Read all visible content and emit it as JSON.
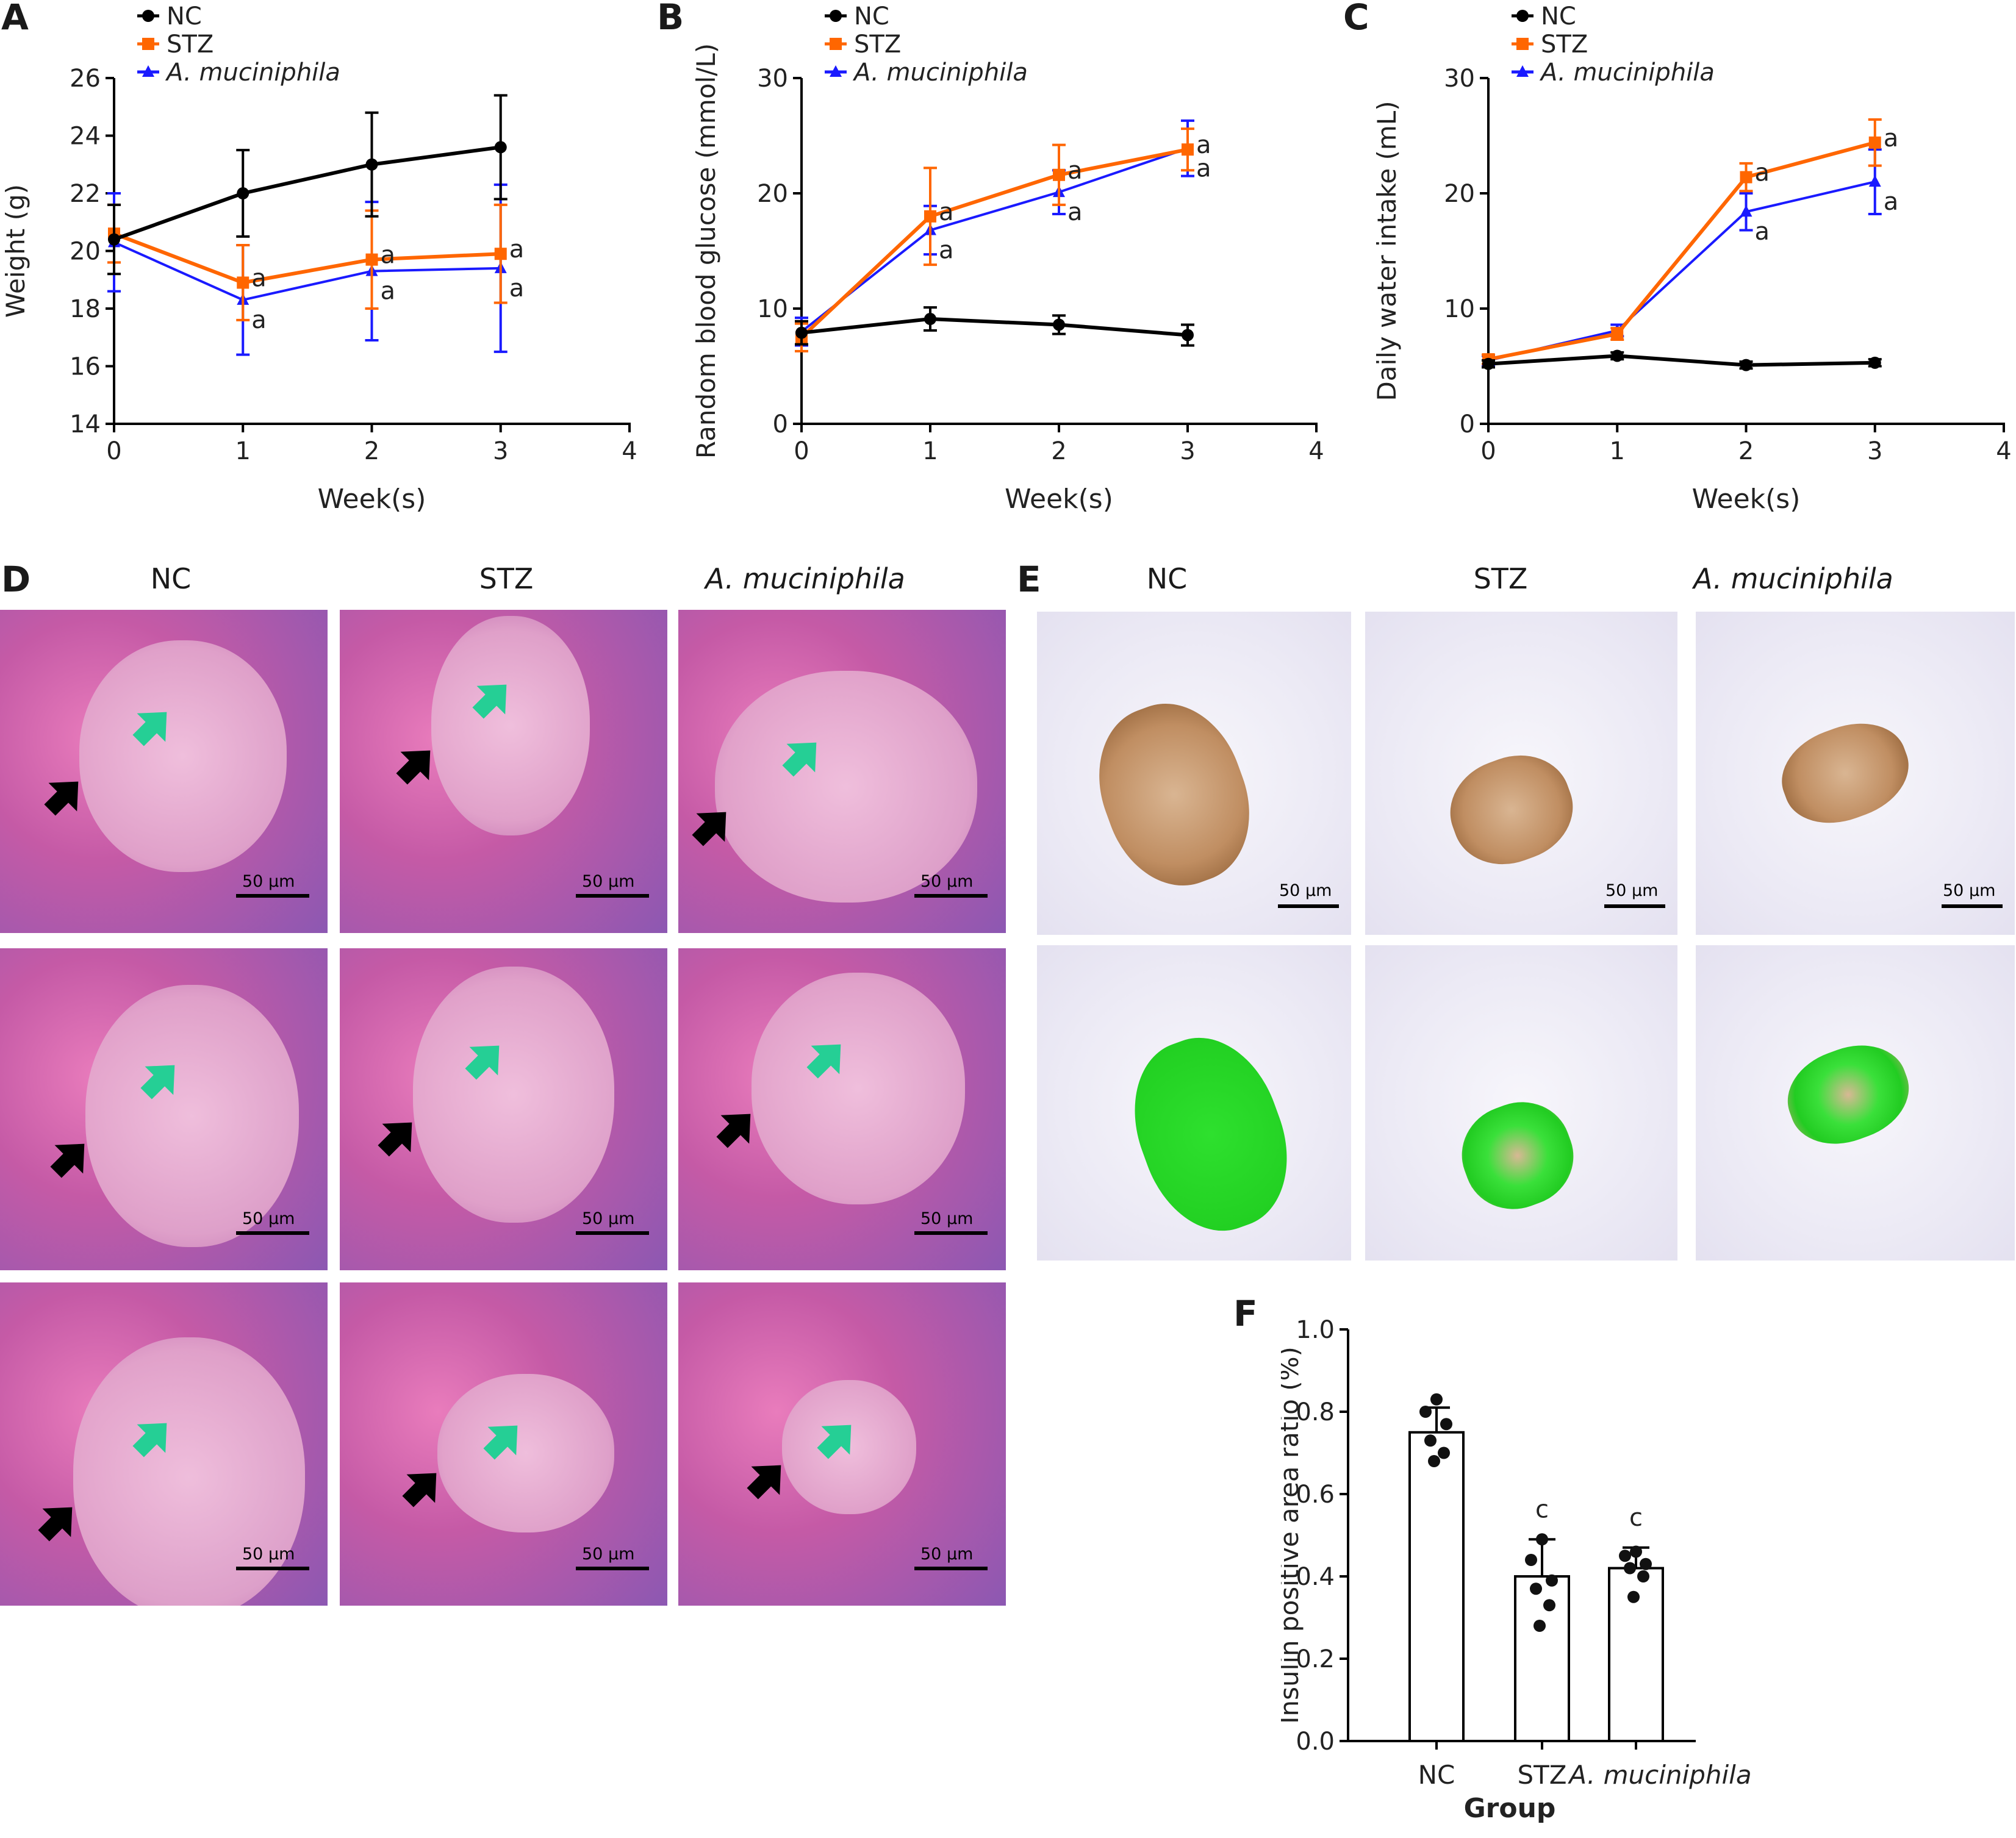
{
  "panels": {
    "A": "A",
    "B": "B",
    "C": "C",
    "D": "D",
    "E": "E",
    "F": "F"
  },
  "colors": {
    "NC": "#000000",
    "STZ": "#ff6600",
    "Akk": "#1a1aff",
    "he_pink": "#d44f9a",
    "he_purple": "#7a4fa6",
    "ihc_brown": "#9a6032",
    "ihc_green": "#22e022"
  },
  "chart_data": [
    {
      "id": "A",
      "type": "line",
      "xlabel": "Week(s)",
      "ylabel": "Weight (g)",
      "xlim": [
        0,
        4
      ],
      "ylim": [
        14,
        26
      ],
      "xticks": [
        0,
        1,
        2,
        3,
        4
      ],
      "yticks": [
        14,
        16,
        18,
        20,
        22,
        24,
        26
      ],
      "x": [
        0,
        1,
        2,
        3
      ],
      "series": [
        {
          "name": "NC",
          "marker": "circle",
          "values": [
            20.4,
            22.0,
            23.0,
            23.6
          ],
          "err": [
            1.2,
            1.5,
            1.8,
            1.8
          ],
          "annot": [
            "",
            "",
            "",
            ""
          ]
        },
        {
          "name": "STZ",
          "marker": "square",
          "values": [
            20.6,
            18.9,
            19.7,
            19.9
          ],
          "err": [
            1.0,
            1.3,
            1.7,
            1.7
          ],
          "annot": [
            "",
            "a",
            "a",
            "a"
          ]
        },
        {
          "name": "A. muciniphila",
          "marker": "triangle",
          "values": [
            20.3,
            18.3,
            19.3,
            19.4
          ],
          "err": [
            1.7,
            1.9,
            2.4,
            2.9
          ],
          "annot": [
            "",
            "a",
            "a",
            "a"
          ]
        }
      ]
    },
    {
      "id": "B",
      "type": "line",
      "xlabel": "Week(s)",
      "ylabel": "Random blood glucose (mmol/L)",
      "xlim": [
        0,
        4
      ],
      "ylim": [
        0,
        30
      ],
      "xticks": [
        0,
        1,
        2,
        3,
        4
      ],
      "yticks": [
        0,
        10,
        20,
        30
      ],
      "x": [
        0,
        1,
        2,
        3
      ],
      "series": [
        {
          "name": "NC",
          "marker": "circle",
          "values": [
            7.9,
            9.1,
            8.6,
            7.7
          ],
          "err": [
            1.0,
            1.0,
            0.8,
            0.9
          ],
          "annot": [
            "",
            "",
            "",
            ""
          ]
        },
        {
          "name": "STZ",
          "marker": "square",
          "values": [
            7.5,
            18.0,
            21.6,
            23.8
          ],
          "err": [
            1.2,
            4.2,
            2.6,
            1.8
          ],
          "annot": [
            "",
            "a",
            "a",
            "a"
          ]
        },
        {
          "name": "A. muciniphila",
          "marker": "triangle",
          "values": [
            8.0,
            16.8,
            20.1,
            23.9
          ],
          "err": [
            1.2,
            2.1,
            1.9,
            2.4
          ],
          "annot": [
            "",
            "a",
            "a",
            "a"
          ]
        }
      ]
    },
    {
      "id": "C",
      "type": "line",
      "xlabel": "Week(s)",
      "ylabel": "Daily water intake (mL)",
      "xlim": [
        0,
        4
      ],
      "ylim": [
        0,
        30
      ],
      "xticks": [
        0,
        1,
        2,
        3,
        4
      ],
      "yticks": [
        0,
        10,
        20,
        30
      ],
      "x": [
        0,
        1,
        2,
        3
      ],
      "series": [
        {
          "name": "NC",
          "marker": "circle",
          "values": [
            5.2,
            5.9,
            5.1,
            5.3
          ],
          "err": [
            0.3,
            0.3,
            0.3,
            0.3
          ],
          "annot": [
            "",
            "",
            "",
            ""
          ]
        },
        {
          "name": "STZ",
          "marker": "square",
          "values": [
            5.6,
            7.8,
            21.4,
            24.4
          ],
          "err": [
            0.4,
            0.5,
            1.2,
            2.0
          ],
          "annot": [
            "",
            "",
            "a",
            "a"
          ]
        },
        {
          "name": "A. muciniphila",
          "marker": "triangle",
          "values": [
            5.5,
            8.1,
            18.4,
            21.0
          ],
          "err": [
            0.4,
            0.5,
            1.6,
            2.8
          ],
          "annot": [
            "",
            "",
            "a",
            "a"
          ]
        }
      ]
    },
    {
      "id": "F",
      "type": "bar",
      "xlabel": "Group",
      "ylabel": "Insulin positive area ratio (%)",
      "ylim": [
        0.0,
        1.0
      ],
      "yticks": [
        "0.0",
        "0.2",
        "0.4",
        "0.6",
        "0.8",
        "1.0"
      ],
      "categories": [
        "NC",
        "STZ",
        "A. muciniphila"
      ],
      "values": [
        0.75,
        0.4,
        0.42
      ],
      "err": [
        0.06,
        0.09,
        0.05
      ],
      "annot": [
        "",
        "c",
        "c"
      ],
      "points": [
        [
          0.83,
          0.8,
          0.77,
          0.73,
          0.7,
          0.68
        ],
        [
          0.49,
          0.44,
          0.39,
          0.37,
          0.33,
          0.28
        ],
        [
          0.46,
          0.45,
          0.43,
          0.42,
          0.4,
          0.35
        ]
      ]
    }
  ],
  "histology": {
    "D": {
      "columns": [
        "NC",
        "STZ",
        "A. muciniphila"
      ],
      "scale": "50 µm"
    },
    "E": {
      "columns": [
        "NC",
        "STZ",
        "A. muciniphila"
      ],
      "scale": "50 µm"
    }
  }
}
